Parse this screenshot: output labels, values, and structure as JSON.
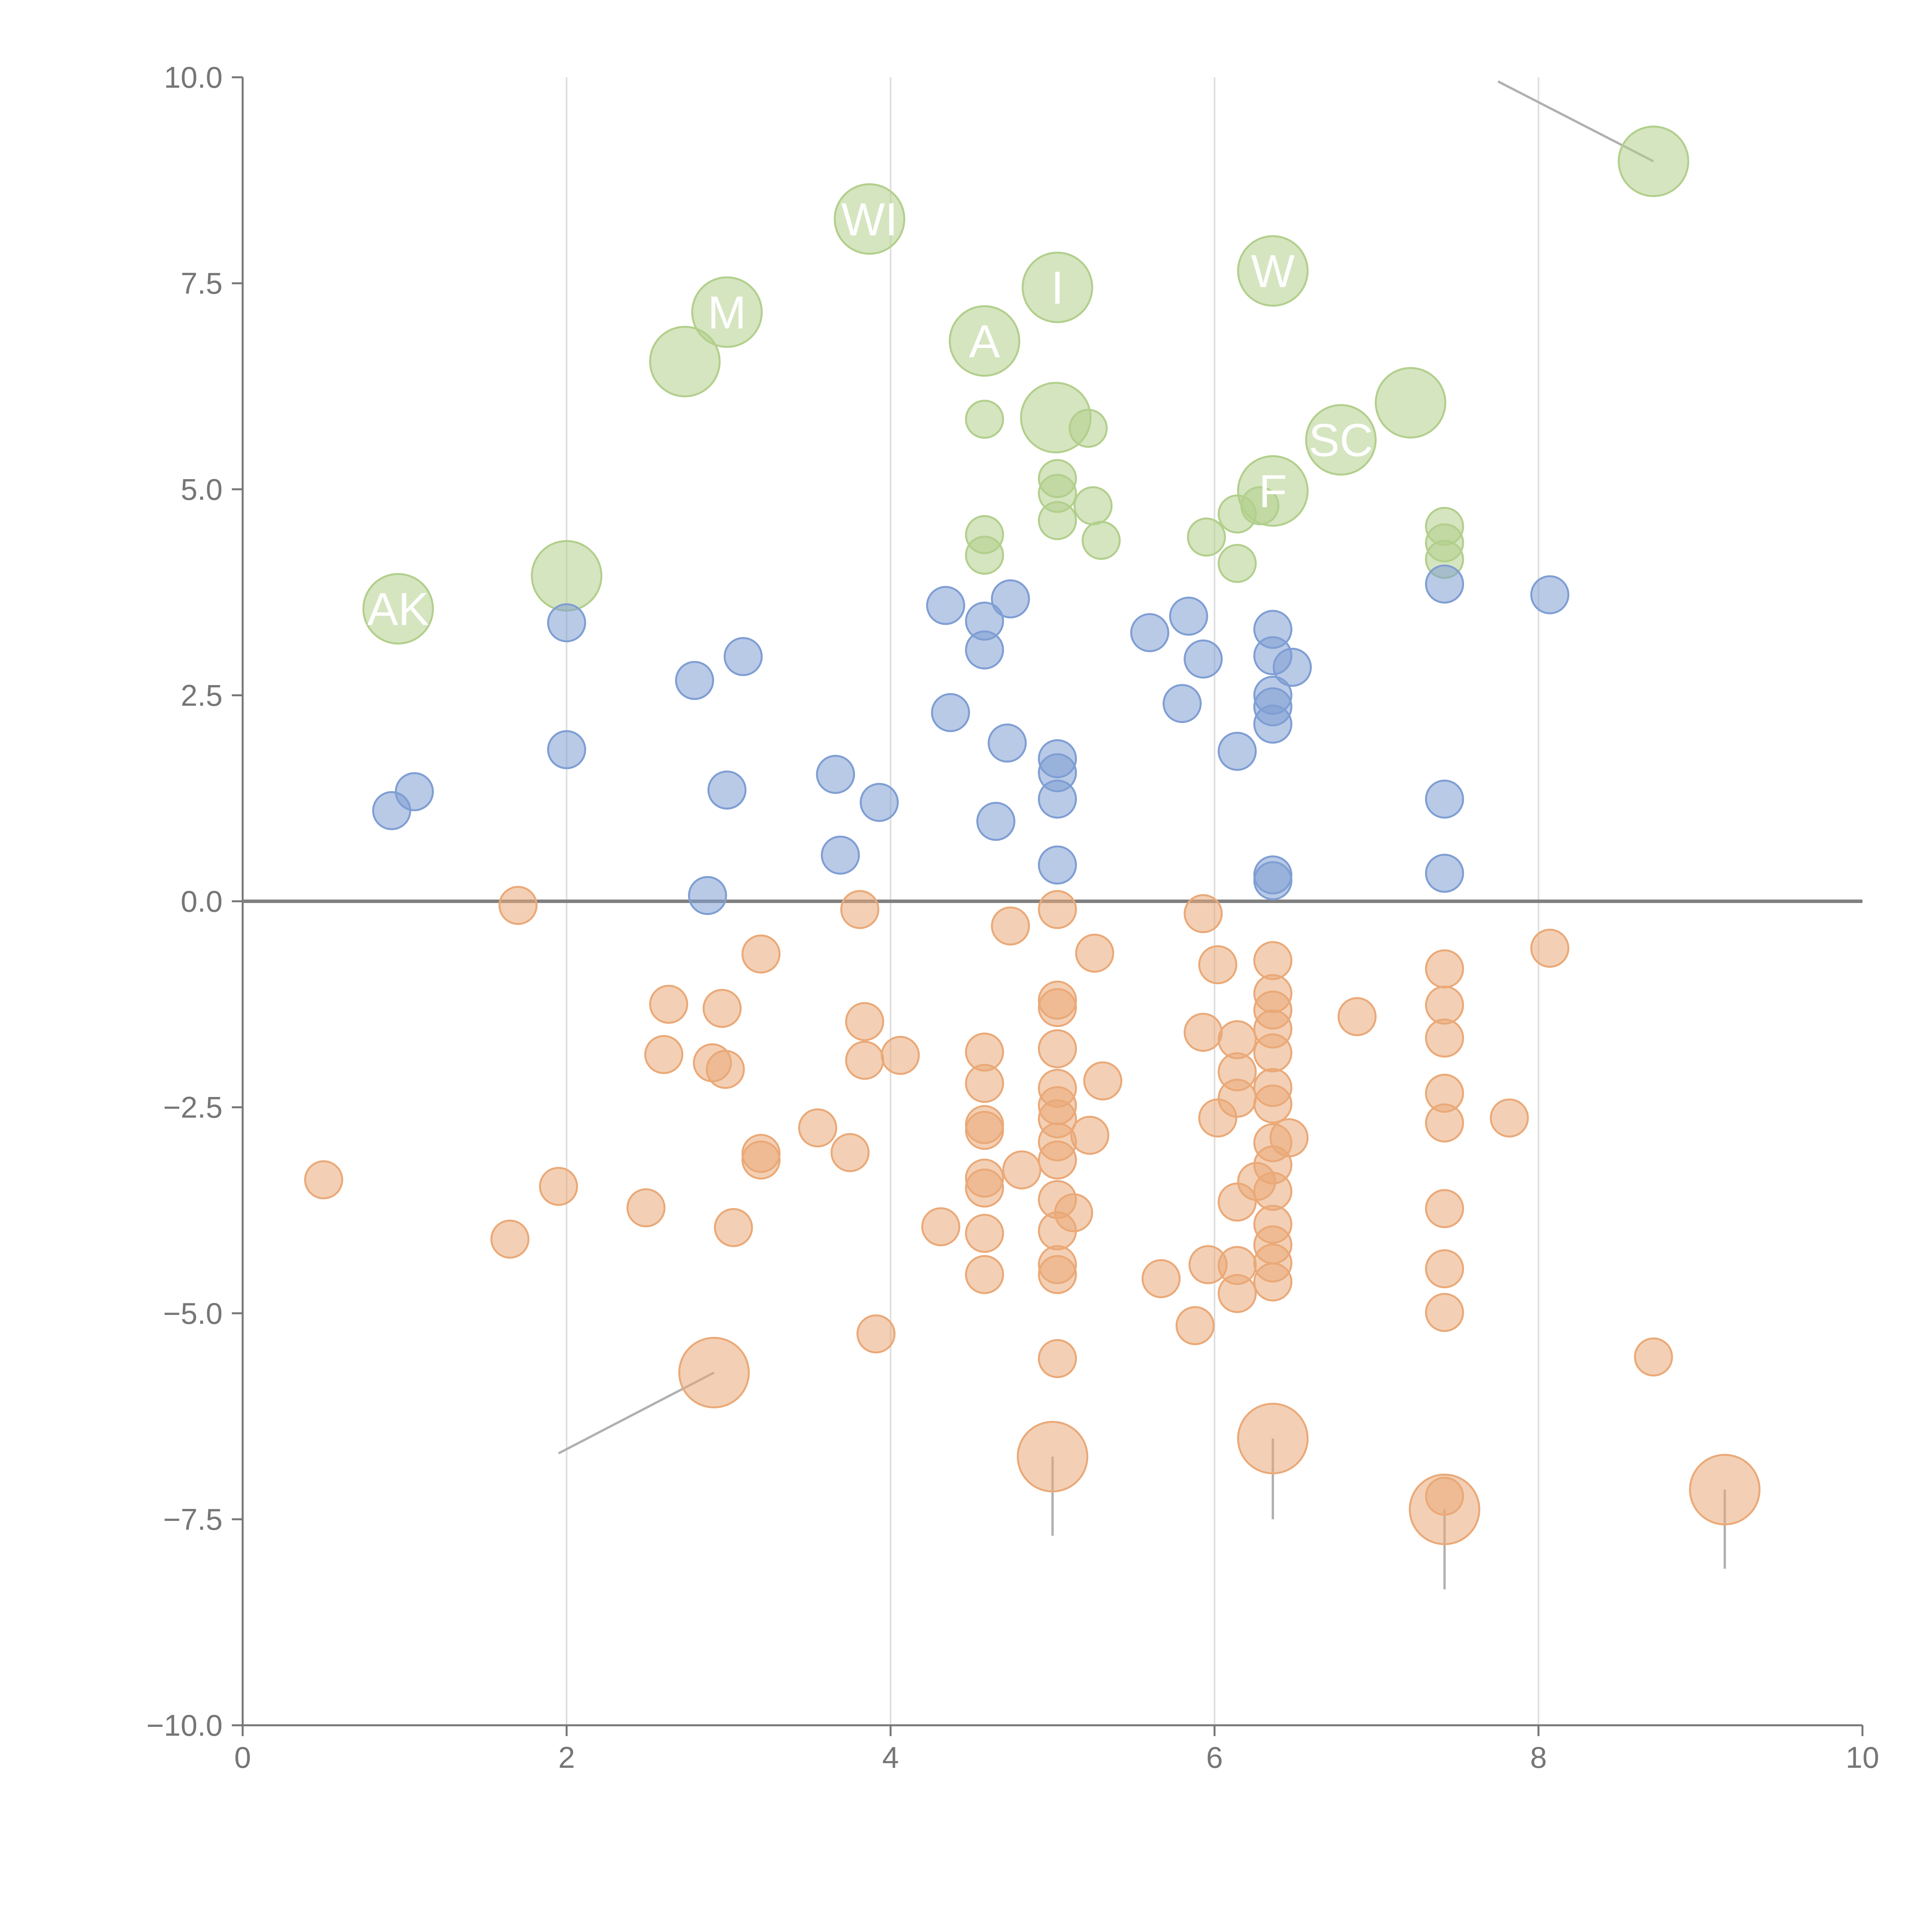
{
  "chart_data": {
    "type": "scatter",
    "title": "",
    "xlabel": "",
    "ylabel": "",
    "xlim": [
      0,
      10
    ],
    "ylim": [
      -10,
      10
    ],
    "xticks": [
      "0",
      "2",
      "4",
      "6",
      "8",
      "10"
    ],
    "yticks": [
      "10.0",
      "7.5",
      "5.0",
      "2.5",
      "0.0",
      "−2.5",
      "−5.0",
      "−7.5",
      "−10.0"
    ],
    "grid": "vertical lines at x ticks",
    "zero_line": true,
    "colors": {
      "green": "#b2cf8c",
      "blue": "#7f9ed3",
      "orange": "#eaa978",
      "axis": "#767676",
      "grid": "#dddddd",
      "zero_line": "#808080",
      "leader": "#b0b0b0"
    },
    "series": [
      {
        "color": "green",
        "points": [
          [
            0.96,
            3.55,
            "big"
          ],
          [
            2.0,
            3.95,
            "big"
          ],
          [
            2.73,
            6.55,
            "big"
          ],
          [
            2.99,
            7.15,
            "big"
          ],
          [
            3.87,
            8.28,
            "big"
          ],
          [
            4.58,
            6.8,
            "big"
          ],
          [
            5.03,
            7.45,
            "big"
          ],
          [
            5.02,
            5.87,
            "big"
          ],
          [
            6.36,
            7.65,
            "big"
          ],
          [
            6.36,
            4.98,
            "big"
          ],
          [
            6.78,
            5.6,
            "big"
          ],
          [
            7.21,
            6.05,
            "big"
          ],
          [
            8.71,
            8.98,
            "big"
          ],
          [
            4.58,
            5.85,
            "small"
          ],
          [
            4.58,
            4.45,
            "small"
          ],
          [
            4.58,
            4.2,
            "small"
          ],
          [
            5.03,
            5.13,
            "small"
          ],
          [
            5.03,
            4.95,
            "small"
          ],
          [
            5.03,
            4.62,
            "small"
          ],
          [
            5.22,
            5.74,
            "small"
          ],
          [
            5.25,
            4.8,
            "small"
          ],
          [
            5.3,
            4.38,
            "small"
          ],
          [
            5.95,
            4.42,
            "small"
          ],
          [
            6.14,
            4.7,
            "small"
          ],
          [
            6.14,
            4.1,
            "small"
          ],
          [
            6.28,
            4.8,
            "small"
          ],
          [
            7.42,
            4.55,
            "small"
          ],
          [
            7.42,
            4.35,
            "small"
          ],
          [
            7.42,
            4.15,
            "small"
          ]
        ]
      },
      {
        "color": "blue",
        "points": [
          [
            0.92,
            1.1
          ],
          [
            1.06,
            1.33
          ],
          [
            2.0,
            3.38
          ],
          [
            2.0,
            1.84
          ],
          [
            2.79,
            2.68
          ],
          [
            3.09,
            2.97
          ],
          [
            2.87,
            0.07
          ],
          [
            2.99,
            1.35
          ],
          [
            3.66,
            1.54
          ],
          [
            3.69,
            0.56
          ],
          [
            3.93,
            1.2
          ],
          [
            4.34,
            3.59
          ],
          [
            4.37,
            2.29
          ],
          [
            4.58,
            3.4
          ],
          [
            4.58,
            3.05
          ],
          [
            4.65,
            0.97
          ],
          [
            4.72,
            1.92
          ],
          [
            4.74,
            3.67
          ],
          [
            5.03,
            1.73
          ],
          [
            5.03,
            1.56
          ],
          [
            5.03,
            1.24
          ],
          [
            5.03,
            0.44
          ],
          [
            5.6,
            3.26
          ],
          [
            5.8,
            2.4
          ],
          [
            5.84,
            3.46
          ],
          [
            5.93,
            2.94
          ],
          [
            6.14,
            1.82
          ],
          [
            6.36,
            3.3
          ],
          [
            6.36,
            2.98
          ],
          [
            6.36,
            2.5
          ],
          [
            6.36,
            2.36
          ],
          [
            6.36,
            2.15
          ],
          [
            6.36,
            0.32
          ],
          [
            6.36,
            0.25
          ],
          [
            6.48,
            2.84
          ],
          [
            7.42,
            3.85
          ],
          [
            7.42,
            1.24
          ],
          [
            7.42,
            0.34
          ],
          [
            8.07,
            3.72
          ]
        ]
      },
      {
        "color": "orange",
        "points": [
          [
            0.5,
            -3.38,
            "small"
          ],
          [
            1.65,
            -4.1,
            "small"
          ],
          [
            1.7,
            -0.05,
            "small"
          ],
          [
            1.95,
            -3.46,
            "small"
          ],
          [
            2.49,
            -3.72,
            "small"
          ],
          [
            2.6,
            -1.86,
            "small"
          ],
          [
            2.63,
            -1.25,
            "small"
          ],
          [
            2.9,
            -1.96,
            "small"
          ],
          [
            2.96,
            -1.3,
            "small"
          ],
          [
            2.98,
            -2.04,
            "small"
          ],
          [
            3.03,
            -3.96,
            "small"
          ],
          [
            3.2,
            -0.64,
            "small"
          ],
          [
            3.2,
            -3.06,
            "small"
          ],
          [
            3.2,
            -3.14,
            "small"
          ],
          [
            3.55,
            -2.75,
            "small"
          ],
          [
            3.75,
            -3.05,
            "small"
          ],
          [
            3.81,
            -0.1,
            "small"
          ],
          [
            3.84,
            -1.46,
            "small"
          ],
          [
            3.84,
            -1.93,
            "small"
          ],
          [
            3.91,
            -5.25,
            "small"
          ],
          [
            4.06,
            -1.87,
            "small"
          ],
          [
            4.31,
            -3.95,
            "small"
          ],
          [
            4.58,
            -1.83,
            "small"
          ],
          [
            4.58,
            -2.21,
            "small"
          ],
          [
            4.58,
            -2.71,
            "small"
          ],
          [
            4.58,
            -2.78,
            "small"
          ],
          [
            4.58,
            -3.36,
            "small"
          ],
          [
            4.58,
            -3.48,
            "small"
          ],
          [
            4.58,
            -4.03,
            "small"
          ],
          [
            4.58,
            -4.53,
            "small"
          ],
          [
            4.74,
            -0.3,
            "small"
          ],
          [
            4.81,
            -3.26,
            "small"
          ],
          [
            5.03,
            -0.1,
            "small"
          ],
          [
            5.03,
            -1.2,
            "small"
          ],
          [
            5.03,
            -1.29,
            "small"
          ],
          [
            5.03,
            -1.79,
            "small"
          ],
          [
            5.03,
            -2.27,
            "small"
          ],
          [
            5.03,
            -2.48,
            "small"
          ],
          [
            5.03,
            -2.64,
            "small"
          ],
          [
            5.03,
            -2.92,
            "small"
          ],
          [
            5.03,
            -3.14,
            "small"
          ],
          [
            5.03,
            -3.62,
            "small"
          ],
          [
            5.03,
            -4.0,
            "small"
          ],
          [
            5.03,
            -4.41,
            "small"
          ],
          [
            5.03,
            -4.53,
            "small"
          ],
          [
            5.03,
            -5.55,
            "small"
          ],
          [
            5.13,
            -3.78,
            "small"
          ],
          [
            5.23,
            -2.84,
            "small"
          ],
          [
            5.26,
            -0.63,
            "small"
          ],
          [
            5.31,
            -2.18,
            "small"
          ],
          [
            5.67,
            -4.58,
            "small"
          ],
          [
            5.88,
            -5.15,
            "small"
          ],
          [
            5.93,
            -0.15,
            "small"
          ],
          [
            5.93,
            -1.59,
            "small"
          ],
          [
            5.96,
            -4.41,
            "small"
          ],
          [
            6.02,
            -0.77,
            "small"
          ],
          [
            6.02,
            -2.63,
            "small"
          ],
          [
            6.14,
            -1.68,
            "small"
          ],
          [
            6.14,
            -2.07,
            "small"
          ],
          [
            6.14,
            -2.39,
            "small"
          ],
          [
            6.14,
            -3.65,
            "small"
          ],
          [
            6.14,
            -4.42,
            "small"
          ],
          [
            6.14,
            -4.76,
            "small"
          ],
          [
            6.26,
            -3.4,
            "small"
          ],
          [
            6.36,
            -0.72,
            "small"
          ],
          [
            6.36,
            -1.12,
            "small"
          ],
          [
            6.36,
            -1.32,
            "small"
          ],
          [
            6.36,
            -1.55,
            "small"
          ],
          [
            6.36,
            -1.84,
            "small"
          ],
          [
            6.36,
            -2.26,
            "small"
          ],
          [
            6.36,
            -2.46,
            "small"
          ],
          [
            6.36,
            -2.93,
            "small"
          ],
          [
            6.36,
            -3.2,
            "small"
          ],
          [
            6.36,
            -3.52,
            "small"
          ],
          [
            6.36,
            -3.92,
            "small"
          ],
          [
            6.36,
            -4.17,
            "small"
          ],
          [
            6.36,
            -4.39,
            "small"
          ],
          [
            6.36,
            -4.62,
            "small"
          ],
          [
            6.46,
            -2.87,
            "small"
          ],
          [
            6.88,
            -1.4,
            "small"
          ],
          [
            7.42,
            -0.82,
            "small"
          ],
          [
            7.42,
            -1.26,
            "small"
          ],
          [
            7.42,
            -1.66,
            "small"
          ],
          [
            7.42,
            -2.33,
            "small"
          ],
          [
            7.42,
            -2.69,
            "small"
          ],
          [
            7.42,
            -3.73,
            "small"
          ],
          [
            7.42,
            -4.46,
            "small"
          ],
          [
            7.42,
            -4.99,
            "small"
          ],
          [
            7.42,
            -7.22,
            "small"
          ],
          [
            7.82,
            -2.63,
            "small"
          ],
          [
            8.07,
            -0.57,
            "small"
          ],
          [
            8.71,
            -5.53,
            "small"
          ],
          [
            2.91,
            -5.72,
            "big"
          ],
          [
            5.0,
            -6.74,
            "big"
          ],
          [
            6.36,
            -6.52,
            "big"
          ],
          [
            7.42,
            -7.38,
            "big"
          ],
          [
            9.15,
            -7.14,
            "big"
          ]
        ]
      }
    ],
    "labels": [
      "AK",
      "WI",
      "M",
      "A",
      "I",
      "SC",
      "W",
      "F"
    ]
  }
}
